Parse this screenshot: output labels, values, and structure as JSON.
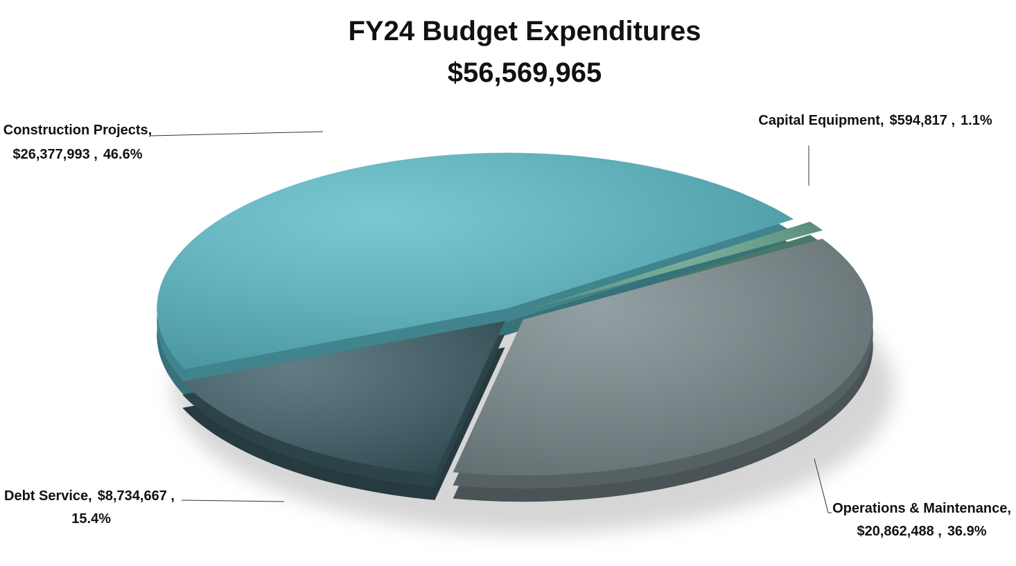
{
  "chart_data": {
    "type": "pie",
    "title": "FY24 Budget Expenditures",
    "subtitle": "$56,569,965",
    "categories": [
      "Capital Equipment,",
      "Operations & Maintenance,",
      "Debt Service,",
      "Construction Projects,"
    ],
    "values": [
      594817,
      20862488,
      8734667,
      26377993
    ],
    "value_labels": [
      "$594,817 ,",
      "$20,862,488 ,",
      "$8,734,667 ,",
      "$26,377,993 ,"
    ],
    "percents": [
      1.1,
      36.9,
      15.4,
      46.6
    ],
    "percent_labels": [
      "1.1%",
      "36.9%",
      "15.4%",
      "46.6%"
    ],
    "colors": [
      "#6aab93",
      "#7b8b8e",
      "#3f6069",
      "#5bbdca"
    ]
  }
}
